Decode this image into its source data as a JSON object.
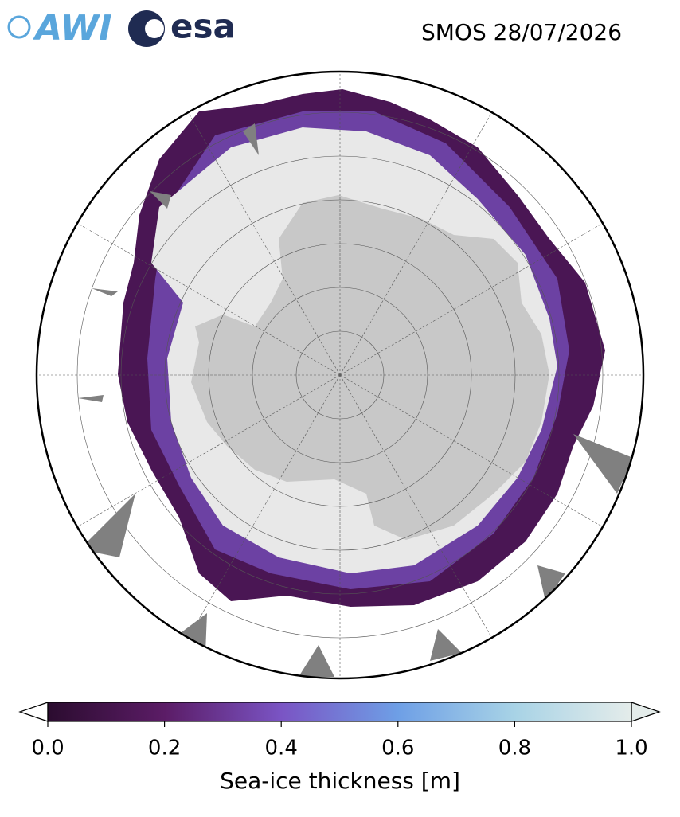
{
  "header": {
    "logos": [
      "AWI",
      "esa"
    ],
    "title": "SMOS 28/07/2026"
  },
  "colorbar": {
    "label": "Sea-ice thickness [m]",
    "range": [
      0,
      1
    ],
    "ticks": [
      {
        "value": 0,
        "label": "0.0"
      },
      0.2,
      0.4,
      0.6,
      0.8,
      {
        "value": 1,
        "label": "1.0"
      }
    ],
    "colors": [
      "#2b0c2f",
      "#5b1c66",
      "#7a54c4",
      "#6e9fe6",
      "#a8d3e6",
      "#e4ecea"
    ]
  }
}
